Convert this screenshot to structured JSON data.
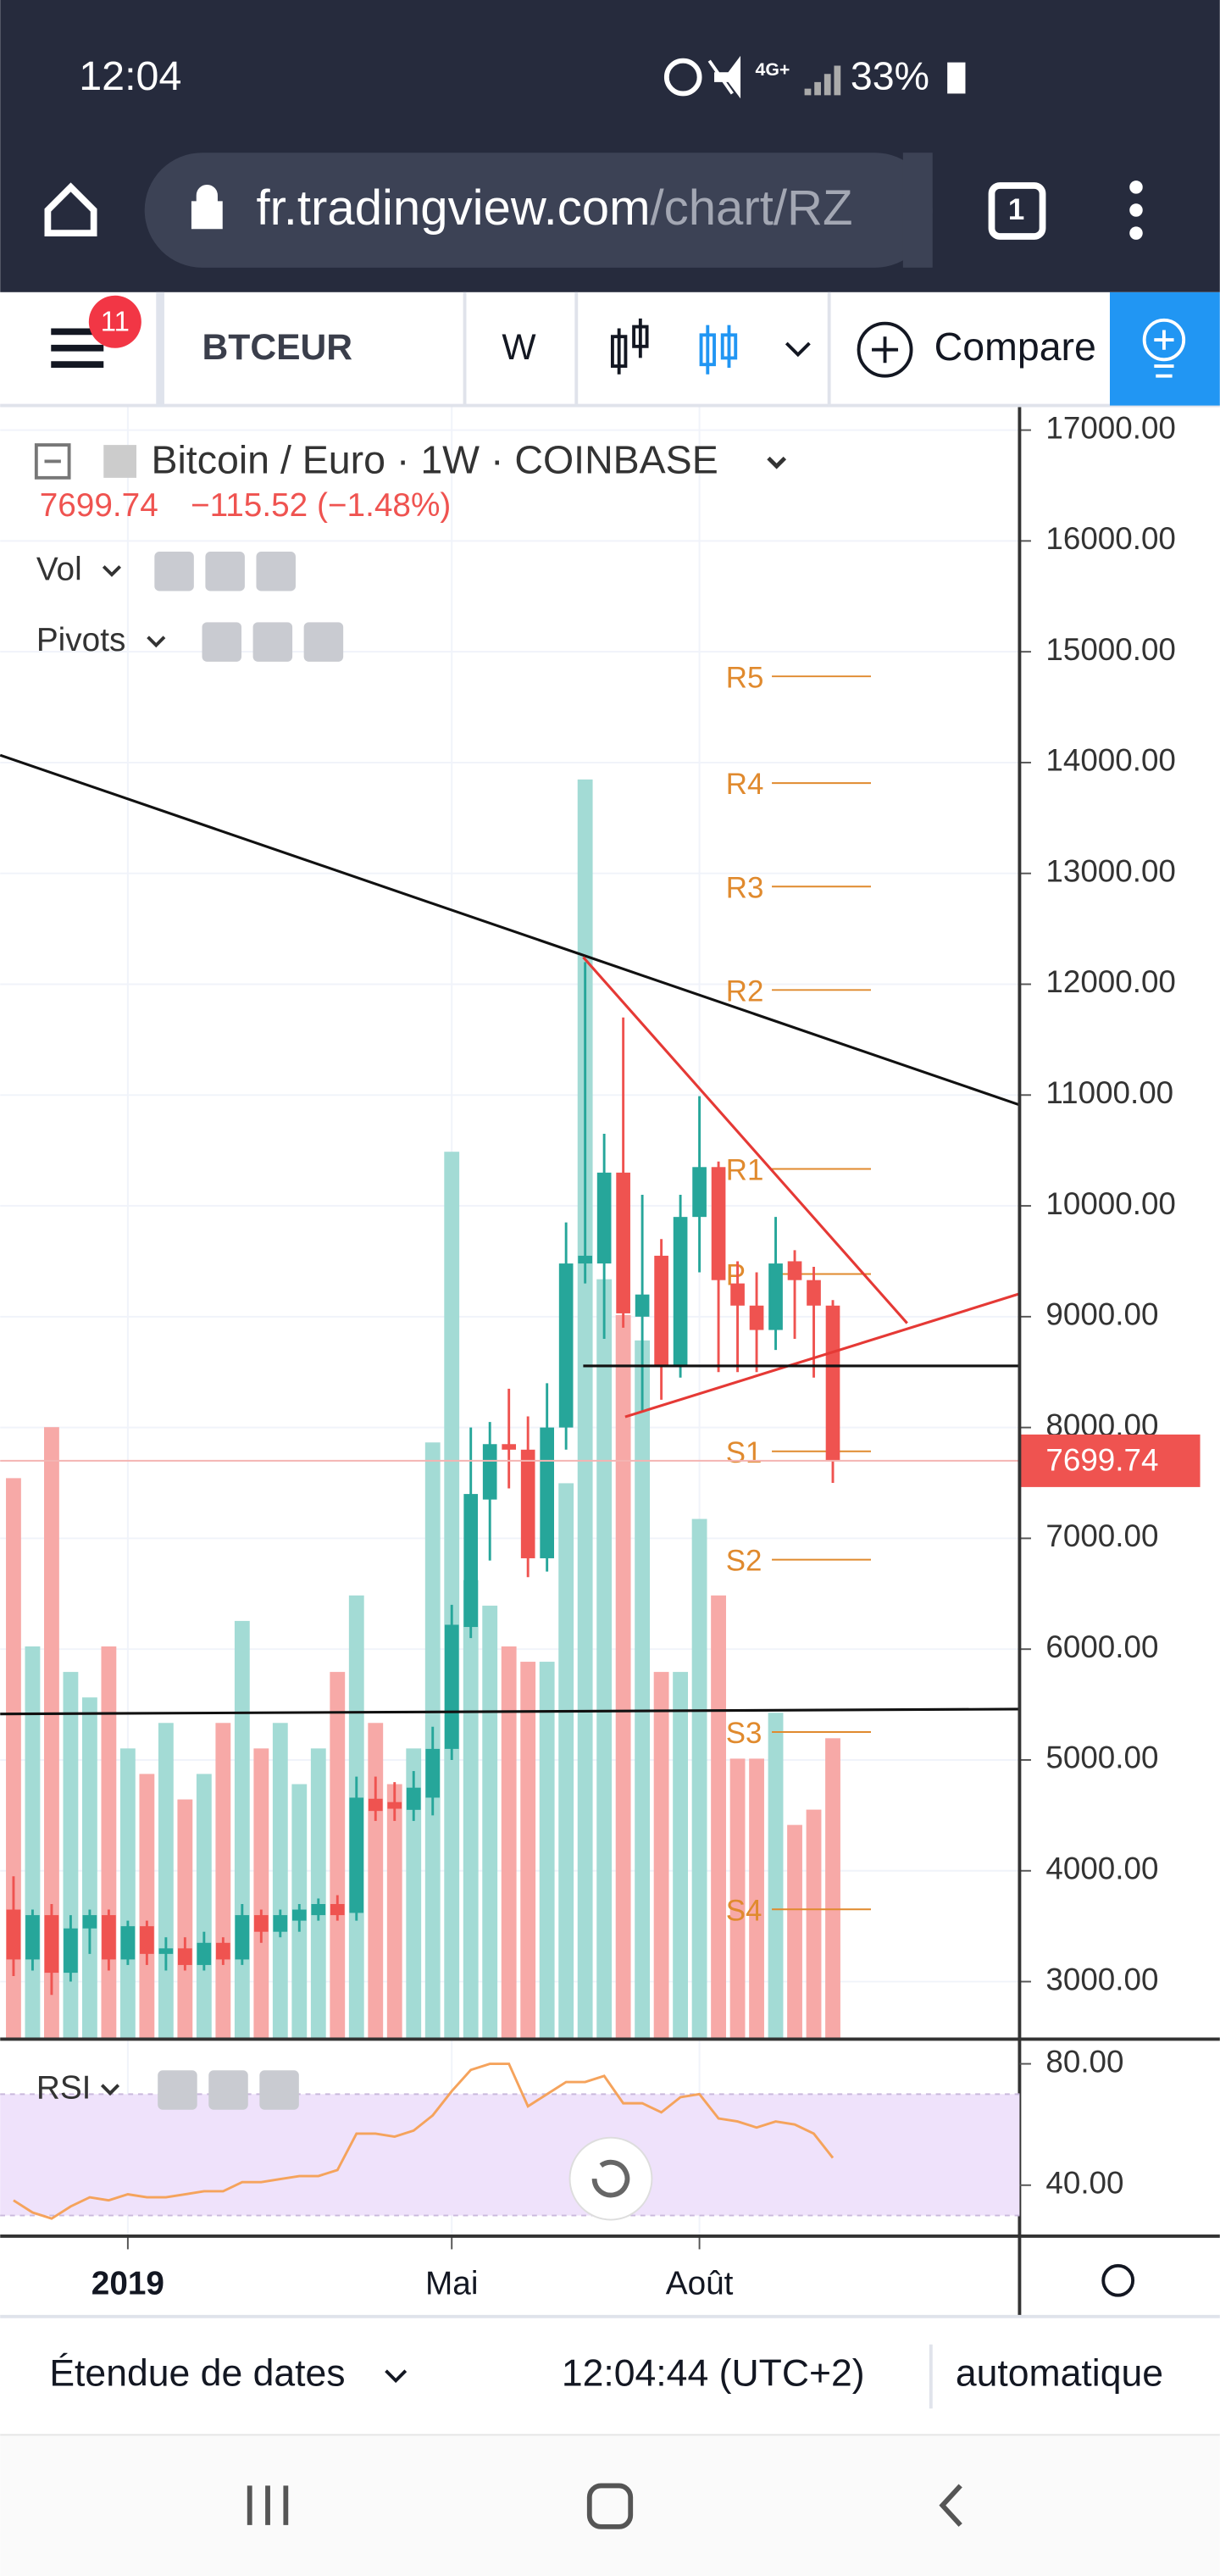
{
  "status_bar": {
    "time": "12:04",
    "network": "4G+",
    "battery": "33%"
  },
  "browser": {
    "url_host": "fr.tradingview.com",
    "url_path": "/chart/RZ",
    "tabs": "1"
  },
  "toolbar": {
    "badge": "11",
    "symbol": "BTCEUR",
    "interval": "W",
    "compare": "Compare"
  },
  "header": {
    "title": "Bitcoin / Euro · 1W · COINBASE",
    "change": "−115.52 (−1.48%)",
    "indicators": [
      "Vol",
      "Pivots"
    ]
  },
  "footer": {
    "range": "Étendue de dates",
    "clock": "12:04:44 (UTC+2)",
    "scale": "automatique"
  },
  "chart_data": {
    "type": "candlestick",
    "up_color": "#26a69a",
    "down_color": "#ef5350",
    "volume_up_color": "#a3dbd5",
    "volume_down_color": "#f7a9a7",
    "grid": true,
    "xlim": [
      -0.7,
      52.8
    ],
    "xticks": [
      {
        "value": 6,
        "label": "2019"
      },
      {
        "value": 23,
        "label": "Mai"
      },
      {
        "value": 36,
        "label": "Août"
      }
    ],
    "ylim": [
      2481,
      17207
    ],
    "yticks": [
      {
        "value": 3000,
        "label": "3000.00"
      },
      {
        "value": 4000,
        "label": "4000.00"
      },
      {
        "value": 5000,
        "label": "5000.00"
      },
      {
        "value": 6000,
        "label": "6000.00"
      },
      {
        "value": 7000,
        "label": "7000.00"
      },
      {
        "value": 8000,
        "label": "8000.00"
      },
      {
        "value": 9000,
        "label": "9000.00"
      },
      {
        "value": 10000,
        "label": "10000.00"
      },
      {
        "value": 11000,
        "label": "11000.00"
      },
      {
        "value": 12000,
        "label": "12000.00"
      },
      {
        "value": 13000,
        "label": "13000.00"
      },
      {
        "value": 14000,
        "label": "14000.00"
      },
      {
        "value": 15000,
        "label": "15000.00"
      },
      {
        "value": 16000,
        "label": "16000.00"
      },
      {
        "value": 17000,
        "label": "17000.00"
      }
    ],
    "open": [
      3650,
      3200,
      3600,
      3080,
      3480,
      3600,
      3200,
      3500,
      3250,
      3300,
      3150,
      3350,
      3200,
      3600,
      3450,
      3550,
      3600,
      3700,
      3620,
      4650,
      4620,
      4550,
      4660,
      5100,
      6200,
      7350,
      7850,
      7800,
      6820,
      8000,
      9480,
      9480,
      10300,
      9000,
      9550,
      8550,
      9900,
      10350,
      9300,
      9100,
      8880,
      9500,
      9330,
      9100
    ],
    "high": [
      3950,
      3650,
      3700,
      3600,
      3650,
      3650,
      3550,
      3550,
      3400,
      3400,
      3450,
      3400,
      3700,
      3650,
      3650,
      3700,
      3750,
      3780,
      4850,
      4850,
      4800,
      4900,
      5300,
      6400,
      8000,
      8050,
      8350,
      8100,
      8400,
      9850,
      12200,
      10650,
      11700,
      10100,
      9700,
      10100,
      10990,
      10400,
      9500,
      9400,
      9900,
      9600,
      9450,
      9150
    ],
    "low": [
      3050,
      3100,
      2880,
      3000,
      3250,
      3100,
      3150,
      3150,
      3100,
      3100,
      3100,
      3150,
      3150,
      3350,
      3400,
      3450,
      3550,
      3550,
      3550,
      4450,
      4450,
      4450,
      4500,
      5000,
      6100,
      6800,
      7450,
      6650,
      6700,
      7800,
      9300,
      8800,
      8900,
      8150,
      8250,
      8450,
      9400,
      8500,
      8500,
      8500,
      8700,
      8800,
      8450,
      7500
    ],
    "close": [
      3200,
      3600,
      3080,
      3480,
      3600,
      3200,
      3500,
      3250,
      3300,
      3150,
      3350,
      3200,
      3600,
      3450,
      3600,
      3650,
      3700,
      3600,
      4660,
      4540,
      4560,
      4750,
      5100,
      6220,
      7400,
      7850,
      7800,
      6820,
      8000,
      9480,
      9550,
      10300,
      9030,
      9200,
      8550,
      9900,
      10350,
      9330,
      9100,
      8880,
      9480,
      9330,
      9100,
      7700
    ],
    "volume": {
      "name": "Vol",
      "vlim": [
        0,
        320
      ],
      "values": [
        110,
        77,
        120,
        72,
        67,
        77,
        57,
        52,
        62,
        47,
        52,
        62,
        82,
        57,
        62,
        50,
        57,
        72,
        87,
        62,
        50,
        57,
        117,
        174,
        90,
        85,
        77,
        74,
        74,
        109,
        247,
        149,
        142,
        137,
        72,
        72,
        102,
        87,
        55,
        55,
        64,
        42,
        45,
        59
      ]
    },
    "last_price": 7699.74,
    "last_price_color": "#ef5350",
    "pivots": {
      "name": "Pivots",
      "color": "#e08a2e",
      "x": [
        39.8,
        45.0
      ],
      "labels": [
        "R5",
        "R4",
        "R3",
        "R2",
        "R1",
        "P",
        "S1",
        "S2",
        "S3",
        "S4"
      ],
      "values": [
        14778,
        13815,
        12881,
        11948,
        10333,
        9385,
        7785,
        6807,
        5252,
        3652
      ]
    },
    "trendlines": [
      {
        "color": "#111111",
        "x": [
          -0.7,
          52.8
        ],
        "y": [
          14067,
          10911
        ]
      },
      {
        "color": "#e53935",
        "x": [
          29.9,
          46.9
        ],
        "y": [
          12244,
          8941
        ]
      },
      {
        "color": "#e53935",
        "x": [
          32.1,
          52.8
        ],
        "y": [
          8096,
          9207
        ]
      },
      {
        "color": "#111111",
        "x": [
          29.9,
          52.8
        ],
        "y": [
          8556,
          8556
        ]
      },
      {
        "color": "#111111",
        "x": [
          -0.7,
          52.8
        ],
        "y": [
          5415,
          5459
        ]
      }
    ],
    "rsi": {
      "name": "RSI",
      "color": "#f5a35c",
      "band": [
        70,
        30
      ],
      "band_color": "#efe2fb",
      "ylim": [
        23.2,
        87.6
      ],
      "yticks": [
        {
          "value": 80,
          "label": "80.00"
        },
        {
          "value": 40,
          "label": "40.00"
        }
      ],
      "values": [
        35,
        31,
        29,
        33,
        36,
        35,
        37,
        36,
        36,
        37,
        38,
        38,
        41,
        41,
        42,
        43,
        43,
        45,
        57,
        57,
        56,
        58,
        63,
        71,
        78,
        80,
        80,
        66,
        70,
        74,
        74,
        76,
        67,
        67,
        64,
        69,
        70,
        62,
        61,
        59,
        61,
        60,
        57,
        49
      ]
    }
  }
}
